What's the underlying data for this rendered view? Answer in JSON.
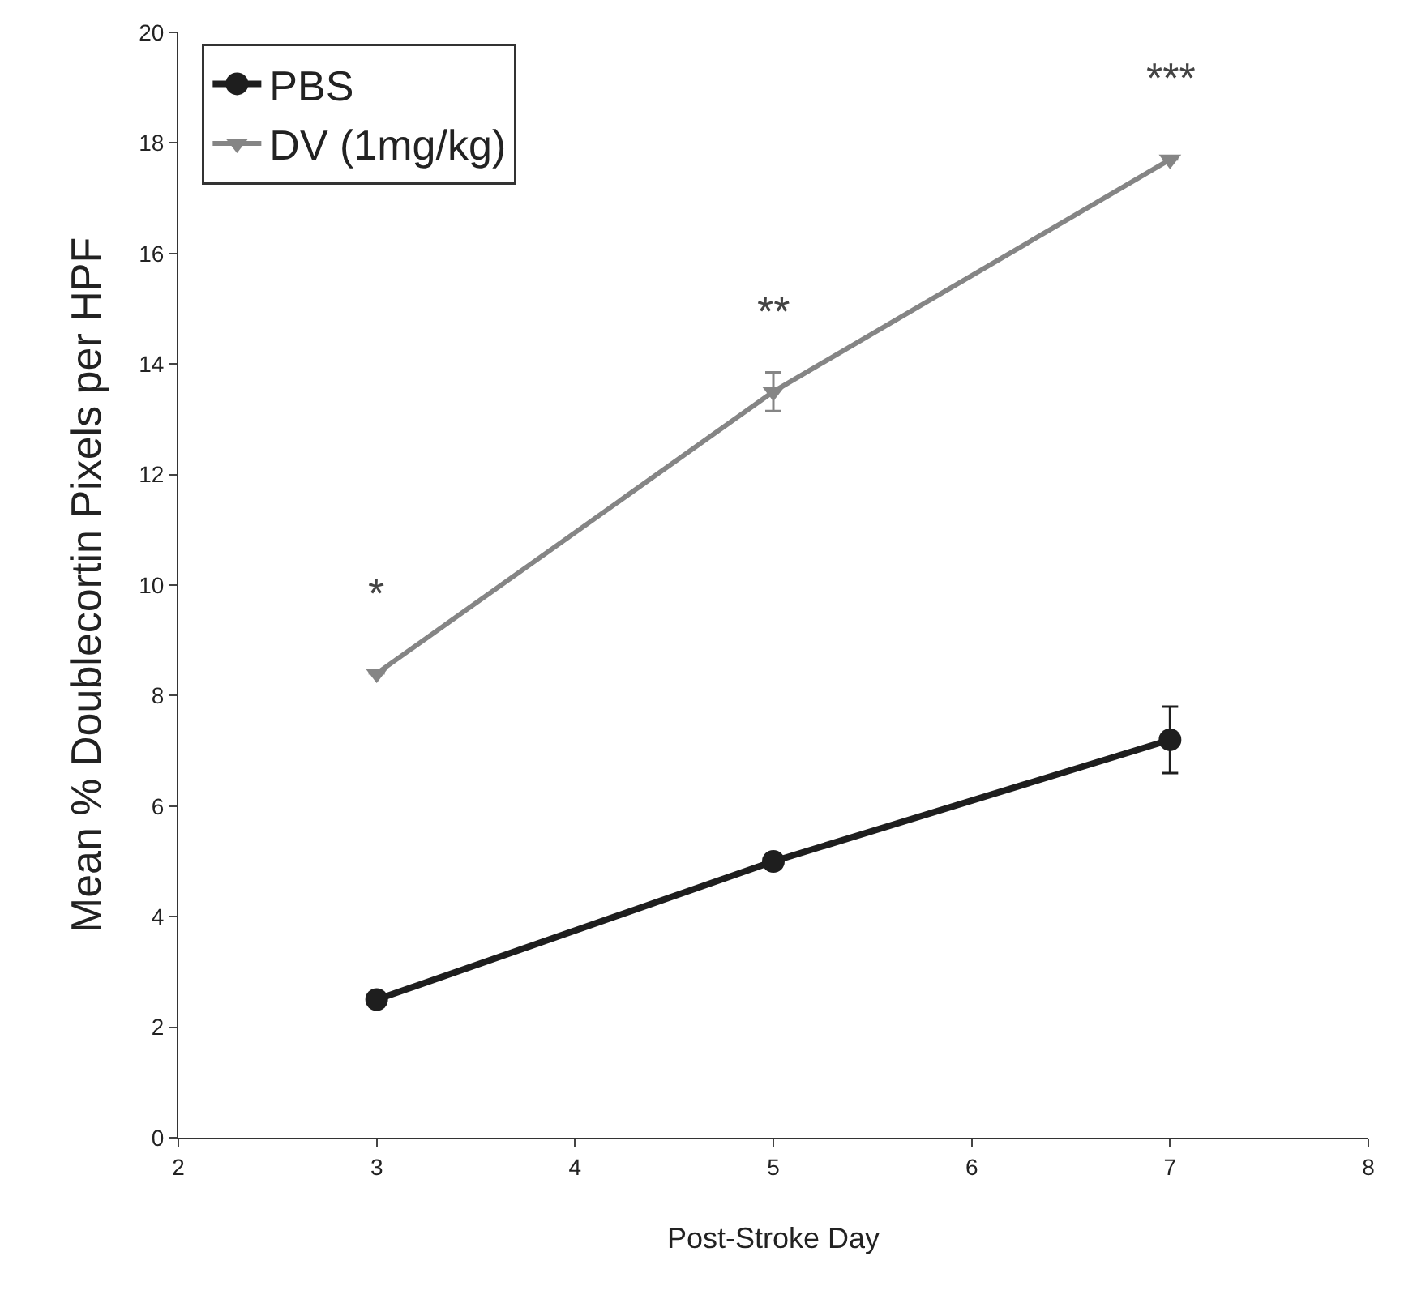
{
  "chart_data": {
    "type": "line",
    "xlabel": "Post-Stroke Day",
    "ylabel": "Mean % Doublecortin Pixels per HPF",
    "x": [
      3,
      5,
      7
    ],
    "series": [
      {
        "name": "PBS",
        "color": "#1e1e1e",
        "values": [
          2.5,
          5.0,
          7.2
        ],
        "errors": [
          null,
          null,
          0.6
        ],
        "marker": "circle"
      },
      {
        "name": "DV (1mg/kg)",
        "color": "#858585",
        "values": [
          8.4,
          13.5,
          17.7
        ],
        "errors": [
          null,
          0.35,
          null
        ],
        "marker": "triangle"
      }
    ],
    "annotations": [
      "*",
      "**",
      "***"
    ],
    "xlim": [
      2,
      8
    ],
    "xticks": [
      2,
      3,
      4,
      5,
      6,
      7,
      8
    ],
    "ylim": [
      0,
      20
    ],
    "yticks": [
      0,
      2,
      4,
      6,
      8,
      10,
      12,
      14,
      16,
      18,
      20
    ],
    "grid": false,
    "legend": "top left",
    "line_style": "solid"
  }
}
